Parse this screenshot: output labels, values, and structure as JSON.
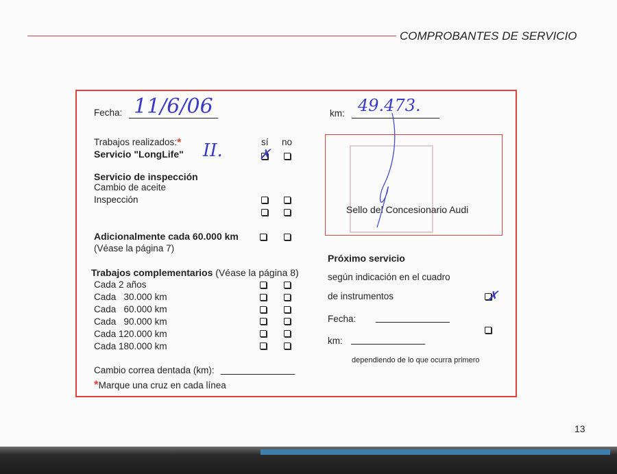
{
  "header": {
    "title": "COMPROBANTES DE SERVICIO",
    "accent": "#e0403a"
  },
  "page_number": "13",
  "left": {
    "fecha_label": "Fecha:",
    "fecha_value": "11/6/06",
    "trabajos_label": "Trabajos realizados:",
    "asterisk": "*",
    "si_label": "sí",
    "no_label": "no",
    "longlife_label": "Servicio \"LongLife\"",
    "longlife_note": "II.",
    "inspeccion_heading": "Servicio de inspección",
    "cambio_aceite": "Cambio de aceite",
    "inspeccion": "Inspección",
    "adicional": "Adicionalmente cada 60.000 km",
    "adicional_ref": "(Véase la página 7)",
    "complementarios": "Trabajos complementarios",
    "complementarios_ref": "(Véase la página 8)",
    "items": [
      "Cada 2 años",
      "Cada   30.000 km",
      "Cada   60.000 km",
      "Cada   90.000 km",
      "Cada 120.000 km",
      "Cada 180.000 km"
    ],
    "correa_label": "Cambio correa dentada (km):",
    "footnote": "Marque una cruz en cada línea"
  },
  "right": {
    "km_label": "km:",
    "km_value": "49.473.",
    "stamp_label": "Sello del Concesionario Audi",
    "proximo_heading": "Próximo servicio",
    "segun": "según indicación en el cuadro",
    "instrumentos": "de instrumentos",
    "fecha_label": "Fecha:",
    "km_label2": "km:",
    "dependiendo": "dependiendo de lo que ocurra primero"
  },
  "checks": {
    "longlife_si": true,
    "instrumentos": true
  }
}
